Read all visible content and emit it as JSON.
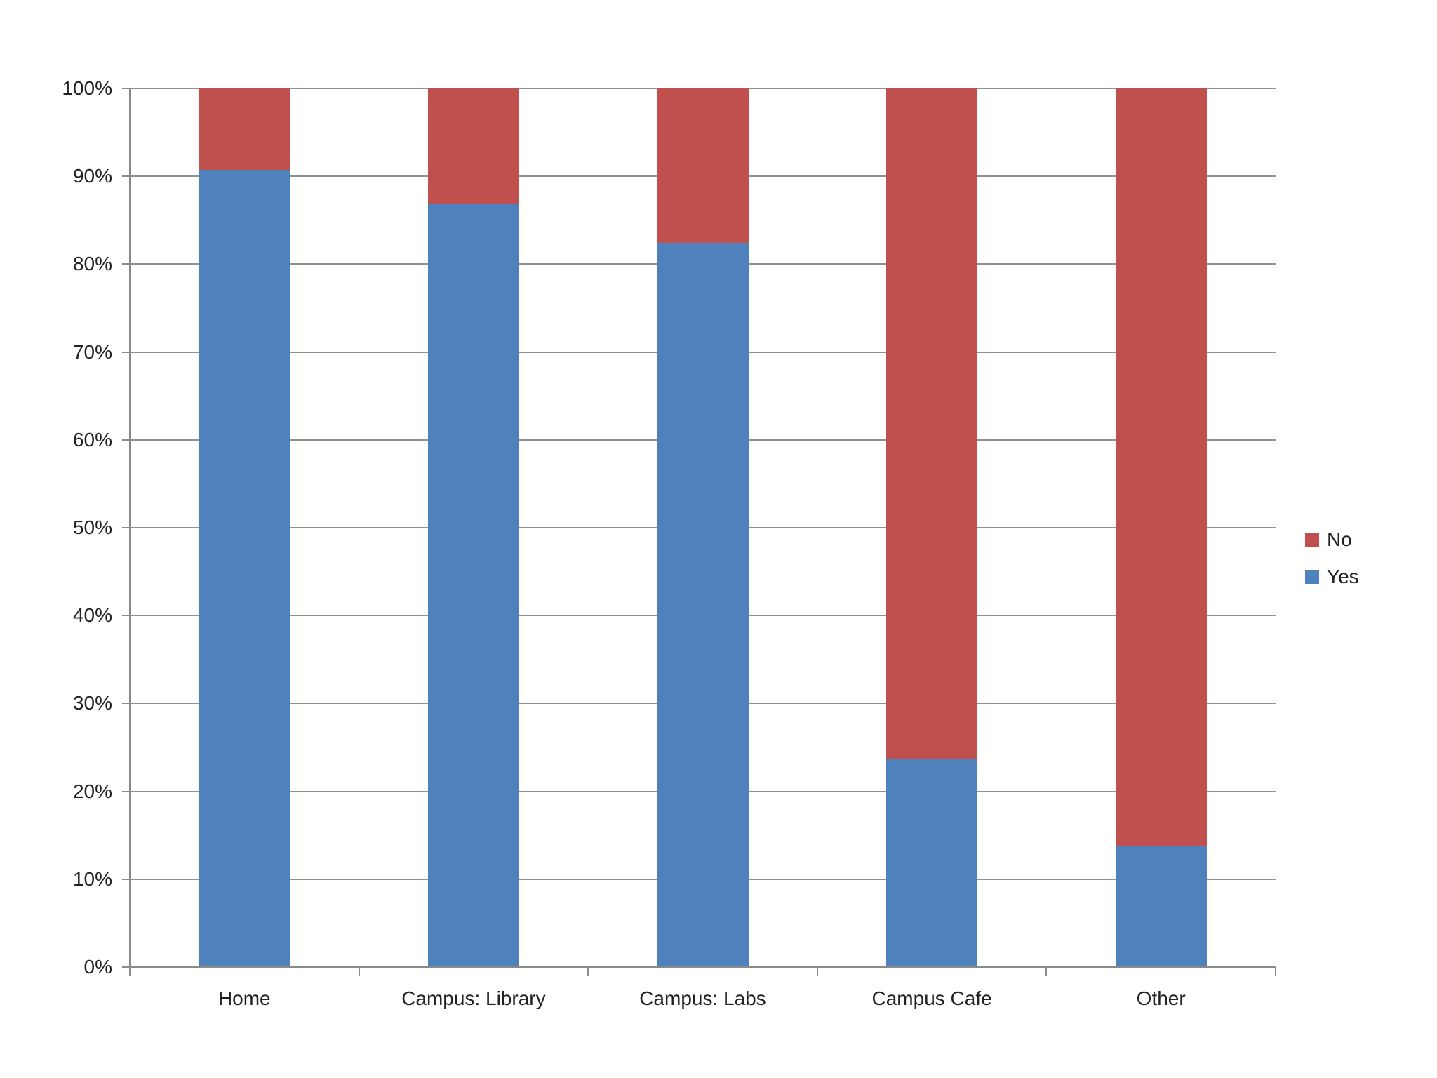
{
  "chart_data": {
    "type": "bar",
    "stacked": true,
    "percent_stacked": true,
    "categories": [
      "Home",
      "Campus: Library",
      "Campus: Labs",
      "Campus Cafe",
      "Other"
    ],
    "series": [
      {
        "name": "Yes",
        "color": "#4F81BD",
        "values": [
          90.7,
          86.9,
          82.4,
          23.7,
          13.7
        ]
      },
      {
        "name": "No",
        "color": "#C0504D",
        "values": [
          9.3,
          13.1,
          17.6,
          76.3,
          86.3
        ]
      }
    ],
    "legend_order": [
      "No",
      "Yes"
    ],
    "legend_position": "right",
    "grid": true,
    "ylim": [
      0,
      100
    ],
    "ytick_step": 10,
    "ytick_labels": [
      "0%",
      "10%",
      "20%",
      "30%",
      "40%",
      "50%",
      "60%",
      "70%",
      "80%",
      "90%",
      "100%"
    ]
  },
  "colors": {
    "background": "#FFFFFF",
    "gridline": "#909090",
    "axis": "#8A8A8A",
    "text": "#222222"
  }
}
